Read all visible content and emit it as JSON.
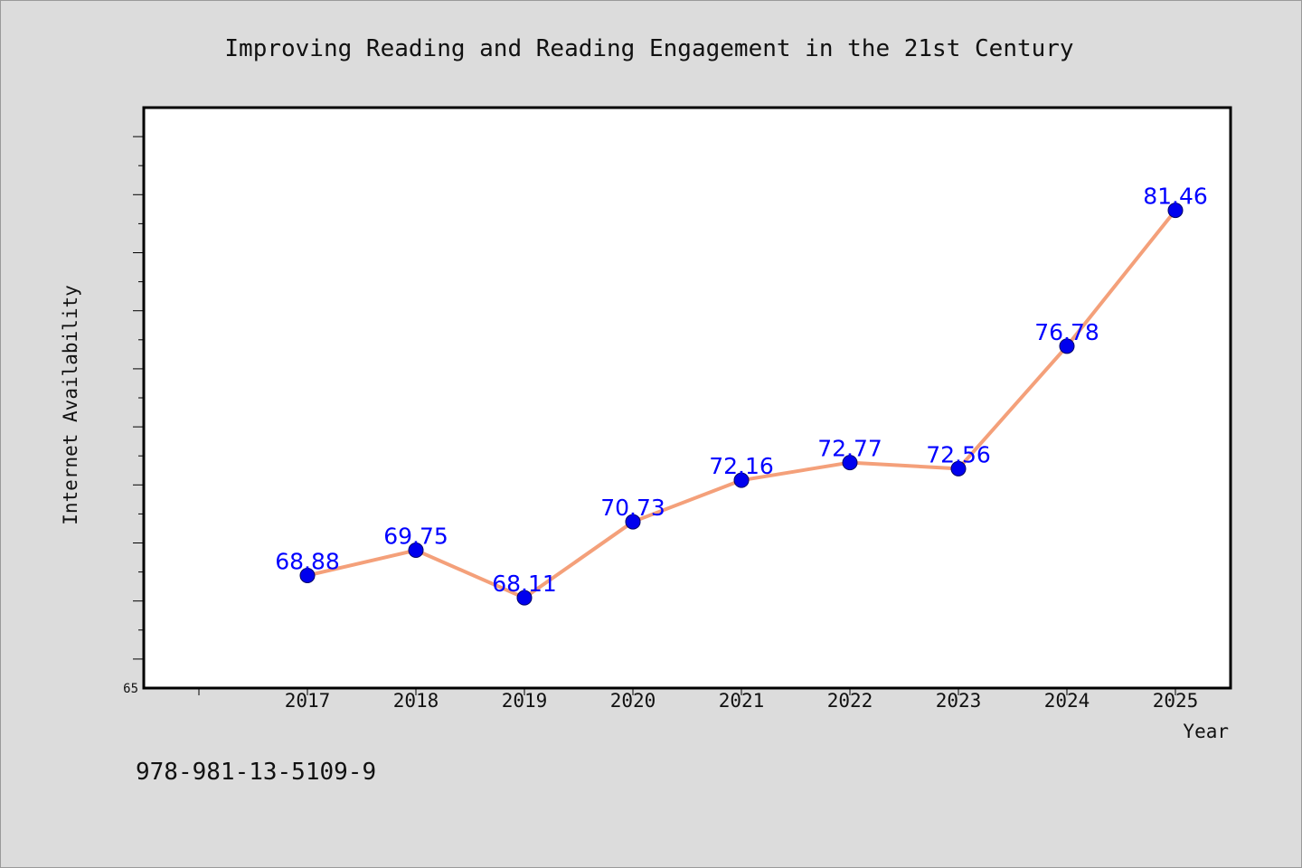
{
  "footer_text": "978-981-13-5109-9",
  "chart_data": {
    "type": "line",
    "title": "Improving Reading and Reading Engagement in the 21st Century",
    "xlabel": "Year",
    "ylabel": "Internet Availability",
    "x": [
      "2017",
      "2018",
      "2019",
      "2020",
      "2021",
      "2022",
      "2023",
      "2024",
      "2025"
    ],
    "series": [
      {
        "values": [
          68.88,
          69.75,
          68.11,
          70.73,
          72.16,
          72.77,
          72.56,
          76.78,
          81.46
        ]
      }
    ],
    "data_labels": [
      "68.88",
      "69.75",
      "68.11",
      "70.73",
      "72.16",
      "72.77",
      "72.56",
      "76.78",
      "81.46"
    ],
    "ylim": [
      65,
      85
    ],
    "y_tick_labels": [
      "65"
    ],
    "grid": false,
    "legend": "none",
    "colors": {
      "line": "#f4a07a",
      "marker": "#0000ee",
      "data_label": "#0000ff",
      "plot_background": "#ffffff",
      "page_background": "#dcdcdc"
    }
  }
}
